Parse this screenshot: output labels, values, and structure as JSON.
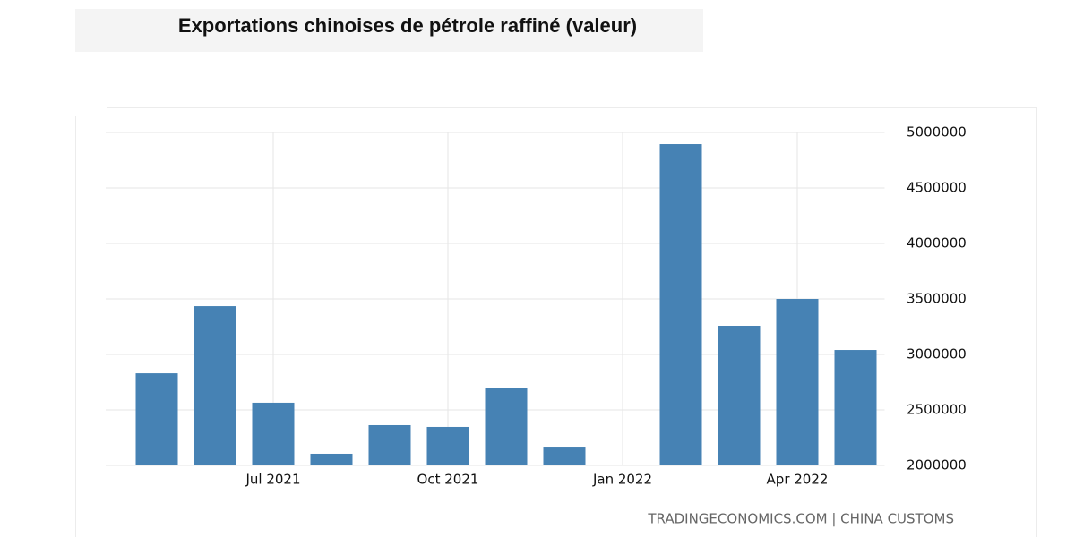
{
  "chart_data": {
    "type": "bar",
    "title": "Exportations chinoises de pétrole raffiné (valeur)",
    "categories": [
      null,
      null,
      "Jul 2021",
      null,
      null,
      "Oct 2021",
      null,
      null,
      "Jan 2022",
      null,
      null,
      "Apr 2022",
      null
    ],
    "values": [
      2830000,
      3435000,
      2565000,
      2105000,
      2363000,
      2347000,
      2694000,
      2161000,
      null,
      4895000,
      3258000,
      3500000,
      3040000
    ],
    "color": "#4682b4",
    "ylim": [
      2000000,
      5000000
    ],
    "yticks": [
      2000000,
      2500000,
      3000000,
      3500000,
      4000000,
      4500000,
      5000000
    ],
    "grid": true,
    "source": "TRADINGECONOMICS.COM | CHINA CUSTOMS"
  }
}
